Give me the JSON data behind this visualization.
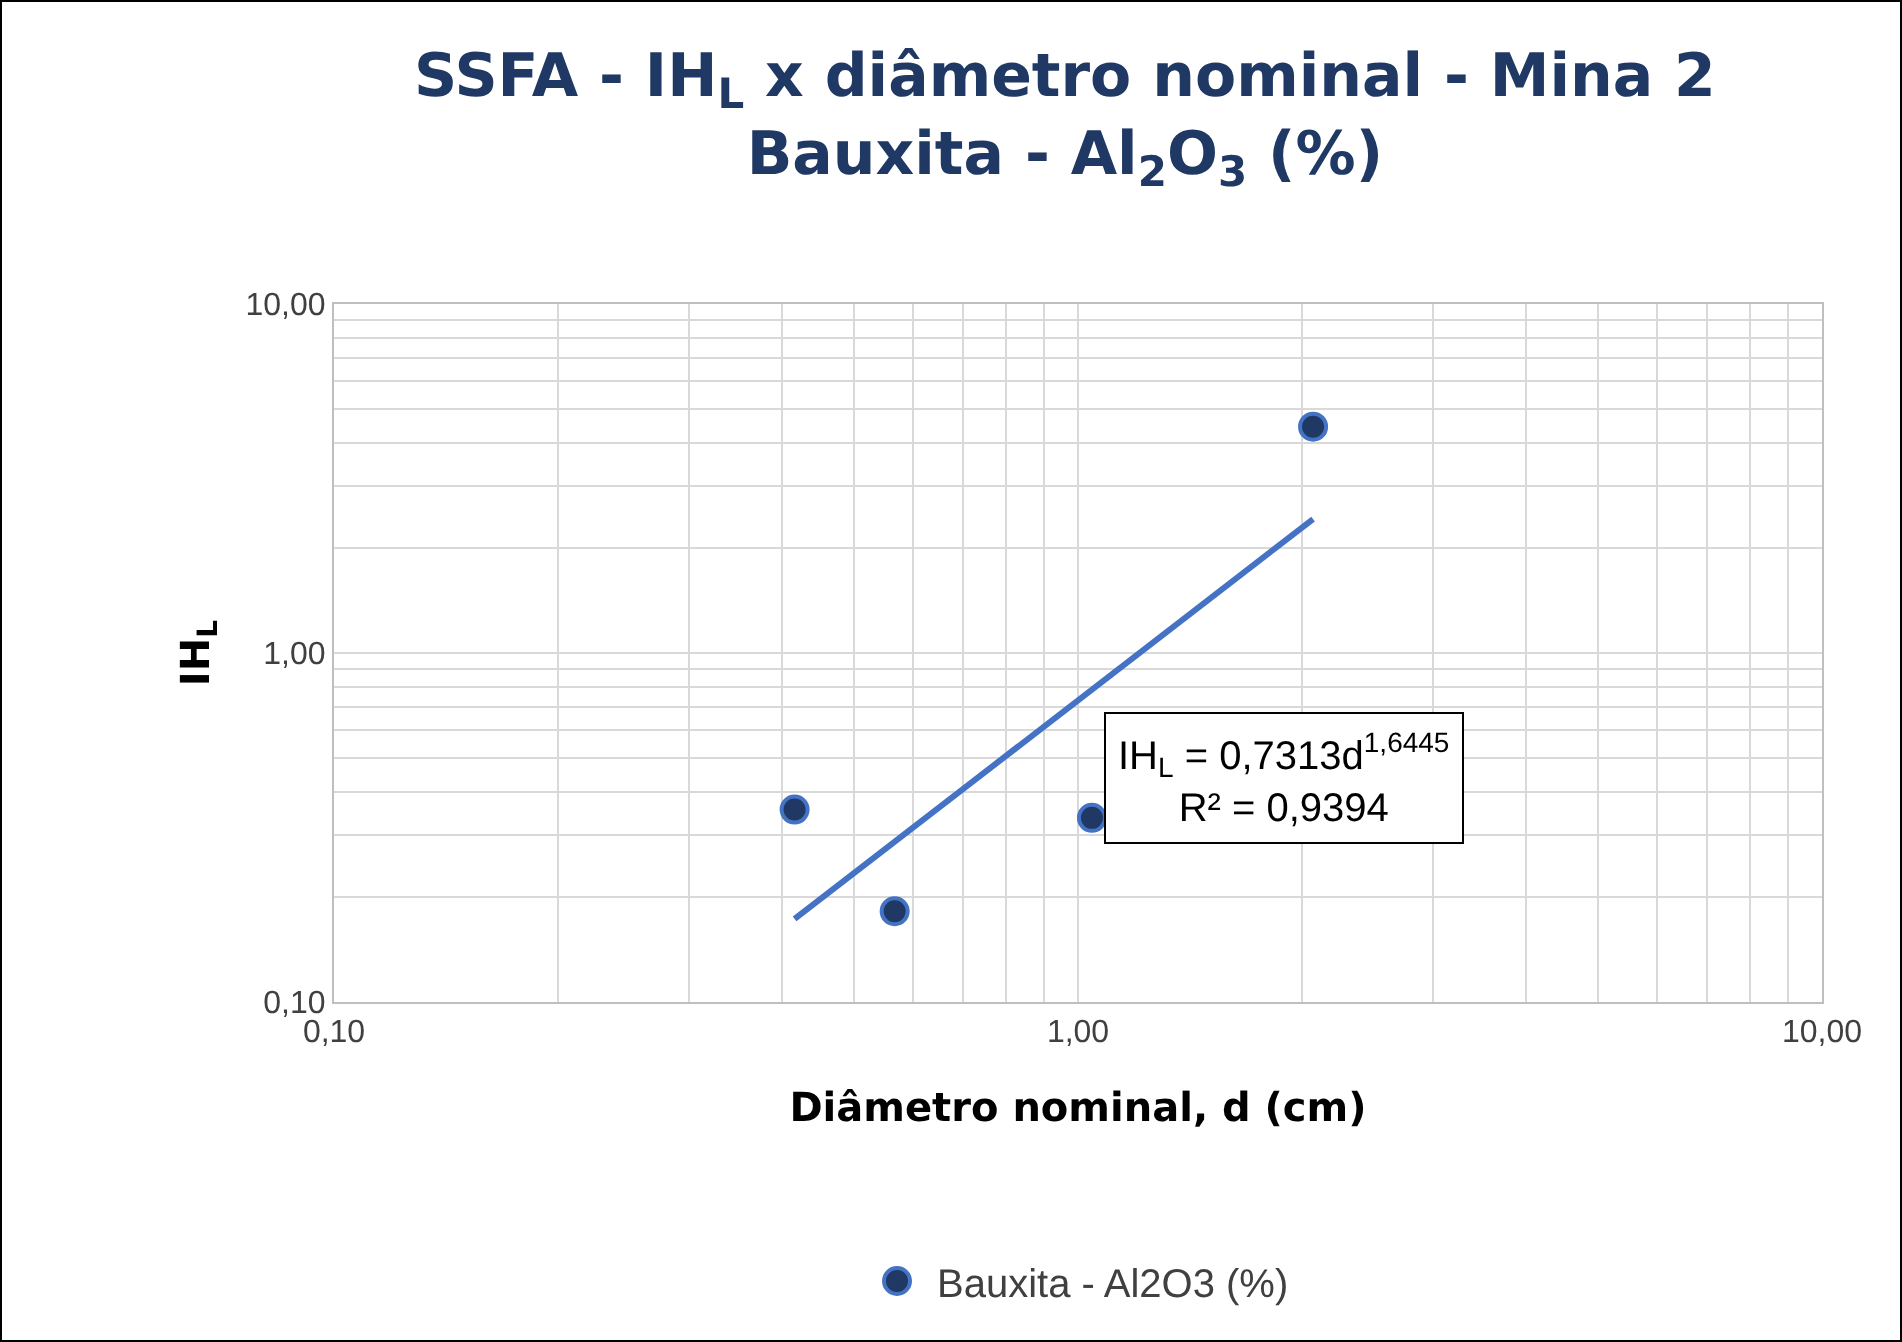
{
  "chart_data": {
    "type": "scatter",
    "title": "SSFA - IH$_{L}$ x diâmetro nominal - Mina 2\nBauxita - Al$_{2}$O$_{3}$ (%)",
    "xlabel": "Diâmetro nominal, d (cm)",
    "ylabel": "IH$_{L}$",
    "annotations": [
      "IH$_{L}$ = 0,7313d$^{1,6445}$\nR² = 0,9394"
    ],
    "series": [
      {
        "name": "Bauxita - Al2O3 (%)",
        "marker": "circle",
        "color": "#1f3864",
        "x": [
          0.416,
          0.567,
          1.044,
          2.07
        ],
        "values": [
          0.356,
          0.182,
          0.337,
          4.45
        ]
      },
      {
        "type": "line",
        "color": "#4472c4",
        "x": [
          0.416,
          2.07
        ],
        "values": [
          0.173,
          2.42
        ]
      }
    ],
    "xlim": [
      0.1,
      10
    ],
    "ylim": [
      0.1,
      10
    ],
    "xticks": [
      {
        "value": 0.1,
        "label": "0,10"
      },
      {
        "value": 1,
        "label": "1,00"
      },
      {
        "value": 10,
        "label": "10,00"
      }
    ],
    "yticks": [
      {
        "value": 0.1,
        "label": "0,10"
      },
      {
        "value": 1,
        "label": "1,00"
      },
      {
        "value": 10,
        "label": "10,00"
      }
    ],
    "log": "xy",
    "grid": true,
    "legend": "bottom"
  }
}
